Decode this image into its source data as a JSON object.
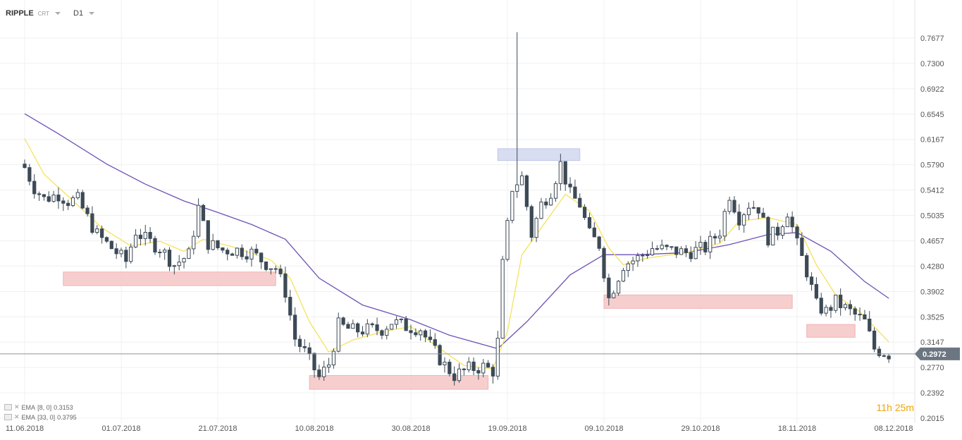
{
  "header": {
    "symbol": "RIPPLE",
    "sub": "CRT",
    "timeframe": "D1"
  },
  "indicators": [
    {
      "label": "EMA",
      "params": "[8, 0]",
      "value": "0.3153",
      "color": "#f5e25a"
    },
    {
      "label": "EMA",
      "params": "[33, 0]",
      "value": "0.3795",
      "color": "#6e52b5"
    }
  ],
  "timer": {
    "h": "11",
    "h_unit": "h",
    "m": "25",
    "m_unit": "m"
  },
  "current_price": "0.2972",
  "colors": {
    "bull_candle": "#ffffff",
    "bear_candle": "#3d4a56",
    "ema8": "#f5e25a",
    "ema33": "#6e52b5",
    "support_zone": "#f6c6c6",
    "resistance_zone": "#d3d8f0",
    "price_badge": "#6b7680"
  },
  "chart_data": {
    "type": "candlestick",
    "y_axis_ticks": [
      "0.7677",
      "0.7300",
      "0.6922",
      "0.6545",
      "0.6167",
      "0.5790",
      "0.5412",
      "0.5035",
      "0.4657",
      "0.4280",
      "0.3902",
      "0.3525",
      "0.3147",
      "0.2770",
      "0.2392",
      "0.2015"
    ],
    "ylim": [
      0.2015,
      0.7677
    ],
    "x_axis_ticks": [
      "11.06.2018",
      "01.07.2018",
      "21.07.2018",
      "10.08.2018",
      "30.08.2018",
      "19.09.2018",
      "09.10.2018",
      "29.10.2018",
      "18.11.2018",
      "08.12.2018"
    ],
    "tick_dates": [
      "2018-06-11",
      "2018-07-01",
      "2018-07-21",
      "2018-08-10",
      "2018-08-30",
      "2018-09-19",
      "2018-10-09",
      "2018-10-29",
      "2018-11-18",
      "2018-12-08"
    ],
    "last_date": "2018-12-07",
    "keyframes": [
      [
        "2018-06-11",
        0.575
      ],
      [
        "2018-06-13",
        0.545
      ],
      [
        "2018-06-15",
        0.528
      ],
      [
        "2018-06-18",
        0.535
      ],
      [
        "2018-06-20",
        0.525
      ],
      [
        "2018-06-22",
        0.527
      ],
      [
        "2018-06-24",
        0.5
      ],
      [
        "2018-06-26",
        0.475
      ],
      [
        "2018-06-29",
        0.455
      ],
      [
        "2018-07-02",
        0.435
      ],
      [
        "2018-07-04",
        0.48
      ],
      [
        "2018-07-06",
        0.468
      ],
      [
        "2018-07-09",
        0.455
      ],
      [
        "2018-07-12",
        0.43
      ],
      [
        "2018-07-15",
        0.445
      ],
      [
        "2018-07-17",
        0.515
      ],
      [
        "2018-07-19",
        0.462
      ],
      [
        "2018-07-22",
        0.452
      ],
      [
        "2018-07-25",
        0.452
      ],
      [
        "2018-07-28",
        0.448
      ],
      [
        "2018-07-31",
        0.432
      ],
      [
        "2018-08-02",
        0.425
      ],
      [
        "2018-08-04",
        0.39
      ],
      [
        "2018-08-06",
        0.32
      ],
      [
        "2018-08-08",
        0.3
      ],
      [
        "2018-08-11",
        0.262
      ],
      [
        "2018-08-13",
        0.282
      ],
      [
        "2018-08-15",
        0.34
      ],
      [
        "2018-08-18",
        0.332
      ],
      [
        "2018-08-21",
        0.333
      ],
      [
        "2018-08-24",
        0.334
      ],
      [
        "2018-08-26",
        0.345
      ],
      [
        "2018-08-29",
        0.338
      ],
      [
        "2018-09-01",
        0.335
      ],
      [
        "2018-09-03",
        0.31
      ],
      [
        "2018-09-06",
        0.28
      ],
      [
        "2018-09-08",
        0.265
      ],
      [
        "2018-09-11",
        0.275
      ],
      [
        "2018-09-14",
        0.278
      ],
      [
        "2018-09-16",
        0.272
      ],
      [
        "2018-09-17",
        0.315
      ],
      [
        "2018-09-18",
        0.43
      ],
      [
        "2018-09-20",
        0.545
      ],
      [
        "2018-09-22",
        0.56
      ],
      [
        "2018-09-24",
        0.475
      ],
      [
        "2018-09-26",
        0.52
      ],
      [
        "2018-09-28",
        0.54
      ],
      [
        "2018-09-30",
        0.58
      ],
      [
        "2018-10-02",
        0.535
      ],
      [
        "2018-10-04",
        0.52
      ],
      [
        "2018-10-06",
        0.475
      ],
      [
        "2018-10-08",
        0.46
      ],
      [
        "2018-10-10",
        0.38
      ],
      [
        "2018-10-13",
        0.43
      ],
      [
        "2018-10-16",
        0.44
      ],
      [
        "2018-10-19",
        0.455
      ],
      [
        "2018-10-22",
        0.452
      ],
      [
        "2018-10-26",
        0.448
      ],
      [
        "2018-10-30",
        0.455
      ],
      [
        "2018-11-02",
        0.48
      ],
      [
        "2018-11-04",
        0.535
      ],
      [
        "2018-11-06",
        0.5
      ],
      [
        "2018-11-08",
        0.52
      ],
      [
        "2018-11-10",
        0.515
      ],
      [
        "2018-11-12",
        0.47
      ],
      [
        "2018-11-14",
        0.48
      ],
      [
        "2018-11-16",
        0.51
      ],
      [
        "2018-11-18",
        0.46
      ],
      [
        "2018-11-20",
        0.42
      ],
      [
        "2018-11-22",
        0.37
      ],
      [
        "2018-11-24",
        0.36
      ],
      [
        "2018-11-26",
        0.375
      ],
      [
        "2018-11-28",
        0.365
      ],
      [
        "2018-11-30",
        0.355
      ],
      [
        "2018-12-02",
        0.345
      ],
      [
        "2018-12-04",
        0.305
      ],
      [
        "2018-12-07",
        0.297
      ]
    ],
    "ema8_points": [
      [
        "2018-06-11",
        0.618
      ],
      [
        "2018-06-15",
        0.565
      ],
      [
        "2018-06-20",
        0.532
      ],
      [
        "2018-06-27",
        0.485
      ],
      [
        "2018-07-03",
        0.458
      ],
      [
        "2018-07-09",
        0.465
      ],
      [
        "2018-07-14",
        0.45
      ],
      [
        "2018-07-18",
        0.468
      ],
      [
        "2018-07-25",
        0.455
      ],
      [
        "2018-08-01",
        0.437
      ],
      [
        "2018-08-05",
        0.41
      ],
      [
        "2018-08-09",
        0.345
      ],
      [
        "2018-08-13",
        0.3
      ],
      [
        "2018-08-18",
        0.318
      ],
      [
        "2018-08-24",
        0.33
      ],
      [
        "2018-08-30",
        0.338
      ],
      [
        "2018-09-05",
        0.305
      ],
      [
        "2018-09-10",
        0.28
      ],
      [
        "2018-09-16",
        0.275
      ],
      [
        "2018-09-19",
        0.33
      ],
      [
        "2018-09-22",
        0.445
      ],
      [
        "2018-09-26",
        0.485
      ],
      [
        "2018-10-01",
        0.535
      ],
      [
        "2018-10-06",
        0.51
      ],
      [
        "2018-10-10",
        0.455
      ],
      [
        "2018-10-13",
        0.43
      ],
      [
        "2018-10-18",
        0.44
      ],
      [
        "2018-10-26",
        0.448
      ],
      [
        "2018-11-02",
        0.462
      ],
      [
        "2018-11-06",
        0.495
      ],
      [
        "2018-11-12",
        0.5
      ],
      [
        "2018-11-18",
        0.49
      ],
      [
        "2018-11-22",
        0.43
      ],
      [
        "2018-11-26",
        0.385
      ],
      [
        "2018-12-01",
        0.36
      ],
      [
        "2018-12-07",
        0.315
      ]
    ],
    "ema33_points": [
      [
        "2018-06-11",
        0.655
      ],
      [
        "2018-06-18",
        0.625
      ],
      [
        "2018-06-28",
        0.58
      ],
      [
        "2018-07-06",
        0.55
      ],
      [
        "2018-07-14",
        0.525
      ],
      [
        "2018-07-21",
        0.508
      ],
      [
        "2018-07-28",
        0.49
      ],
      [
        "2018-08-04",
        0.468
      ],
      [
        "2018-08-11",
        0.41
      ],
      [
        "2018-08-20",
        0.37
      ],
      [
        "2018-08-30",
        0.348
      ],
      [
        "2018-09-07",
        0.325
      ],
      [
        "2018-09-17",
        0.305
      ],
      [
        "2018-09-23",
        0.345
      ],
      [
        "2018-10-02",
        0.415
      ],
      [
        "2018-10-09",
        0.445
      ],
      [
        "2018-10-16",
        0.445
      ],
      [
        "2018-10-26",
        0.448
      ],
      [
        "2018-11-04",
        0.46
      ],
      [
        "2018-11-12",
        0.475
      ],
      [
        "2018-11-18",
        0.478
      ],
      [
        "2018-11-25",
        0.45
      ],
      [
        "2018-12-02",
        0.405
      ],
      [
        "2018-12-07",
        0.38
      ]
    ],
    "spike": {
      "date": "2018-09-21",
      "high": 0.7765
    },
    "zones": [
      {
        "kind": "support",
        "from": "2018-06-19",
        "to": "2018-08-02",
        "top": 0.4192,
        "bottom": 0.399
      },
      {
        "kind": "support",
        "from": "2018-08-09",
        "to": "2018-09-15",
        "top": 0.265,
        "bottom": 0.2445
      },
      {
        "kind": "resistance",
        "from": "2018-09-17",
        "to": "2018-10-04",
        "top": 0.6029,
        "bottom": 0.5853
      },
      {
        "kind": "support",
        "from": "2018-10-09",
        "to": "2018-11-17",
        "top": 0.385,
        "bottom": 0.365
      },
      {
        "kind": "support",
        "from": "2018-11-20",
        "to": "2018-11-30",
        "top": 0.341,
        "bottom": 0.322
      }
    ]
  }
}
